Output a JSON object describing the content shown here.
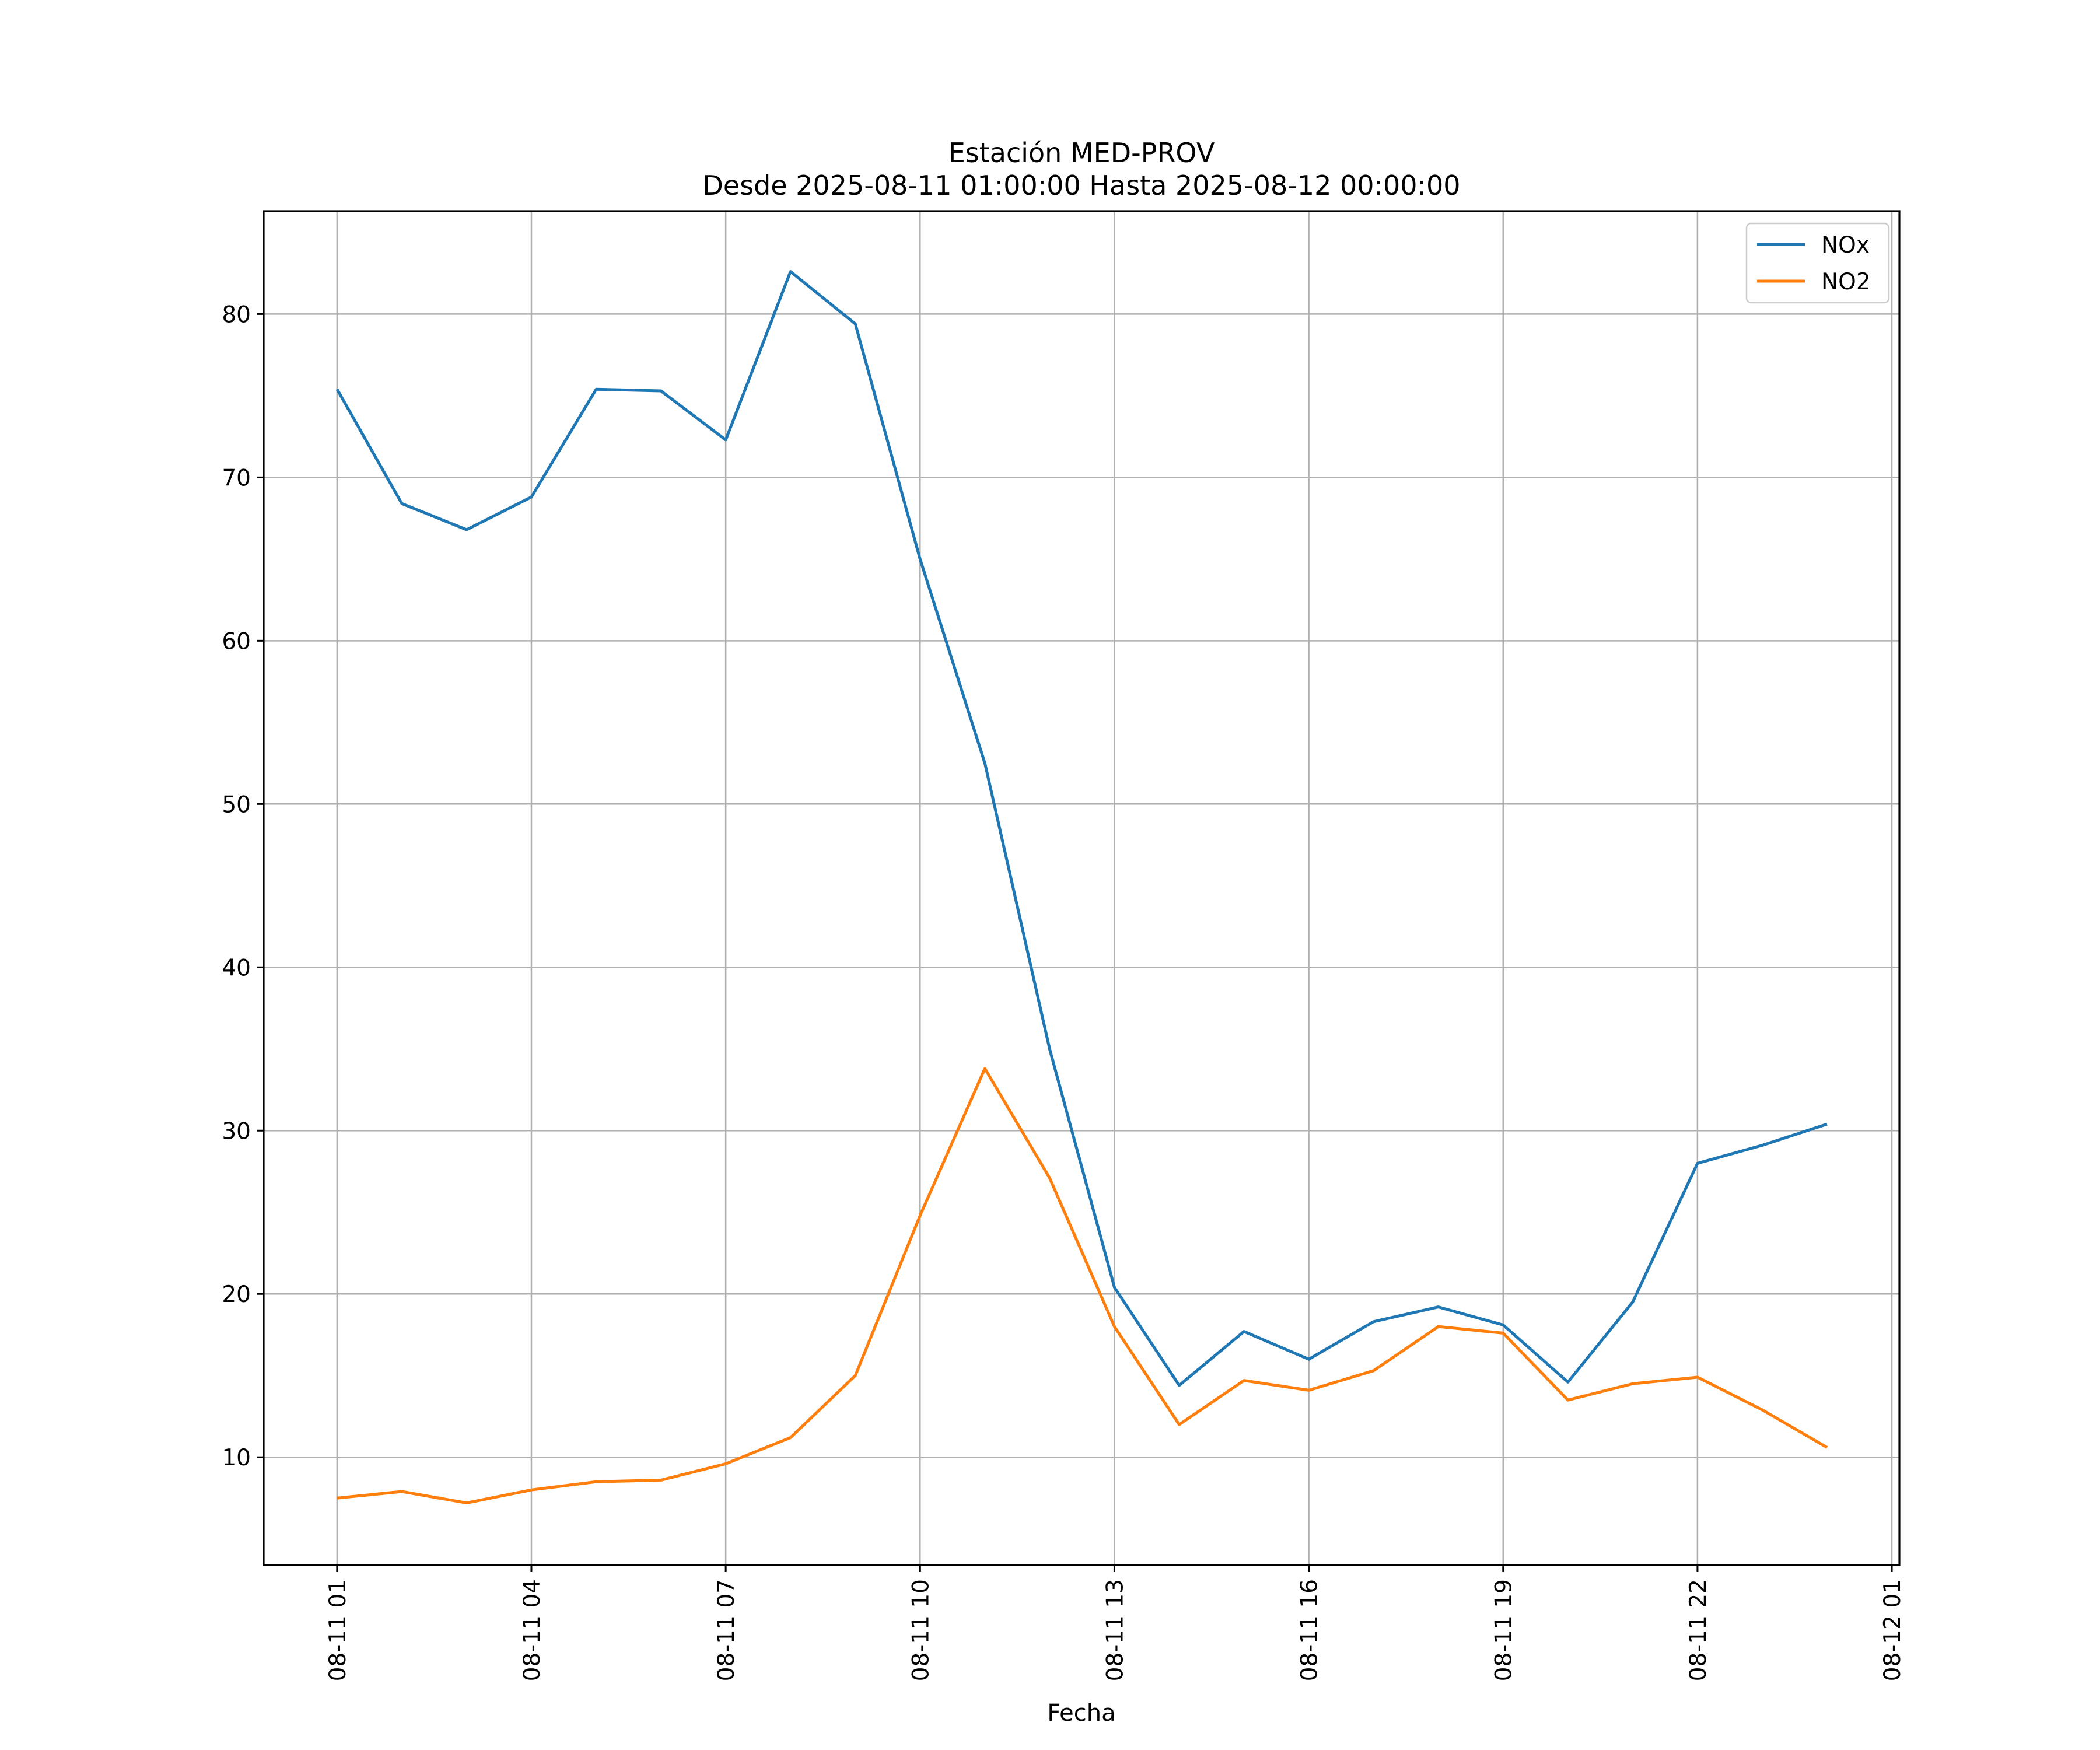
{
  "chart_data": {
    "type": "line",
    "title": "Estación MED-PROV",
    "subtitle": "Desde 2025-08-11 01:00:00 Hasta 2025-08-12 00:00:00",
    "xlabel": "Fecha",
    "ylabel": "",
    "x": [
      "08-11 01",
      "08-11 02",
      "08-11 03",
      "08-11 04",
      "08-11 05",
      "08-11 06",
      "08-11 07",
      "08-11 08",
      "08-11 09",
      "08-11 10",
      "08-11 11",
      "08-11 12",
      "08-11 13",
      "08-11 14",
      "08-11 15",
      "08-11 16",
      "08-11 17",
      "08-11 18",
      "08-11 19",
      "08-11 20",
      "08-11 21",
      "08-11 22",
      "08-11 23",
      "08-12 00"
    ],
    "x_ticks": [
      "08-11 01",
      "08-11 04",
      "08-11 07",
      "08-11 10",
      "08-11 13",
      "08-11 16",
      "08-11 19",
      "08-11 22",
      "08-12 01"
    ],
    "xlim": [
      "08-10 23:52",
      "08-12 01:07"
    ],
    "y_ticks": [
      10,
      20,
      30,
      40,
      50,
      60,
      70,
      80
    ],
    "ylim": [
      3.4,
      86.3
    ],
    "grid": true,
    "legend": "top-right",
    "series": [
      {
        "name": "NOx",
        "color": "#1f77b4",
        "values": [
          75.4,
          68.4,
          66.8,
          68.8,
          75.4,
          75.3,
          72.3,
          82.6,
          79.4,
          65.0,
          52.5,
          35.0,
          20.4,
          14.4,
          17.7,
          16.0,
          18.3,
          19.2,
          18.1,
          14.6,
          19.5,
          28.0,
          29.1,
          30.4
        ]
      },
      {
        "name": "NO2",
        "color": "#ff7f0e",
        "values": [
          7.5,
          7.9,
          7.2,
          8.0,
          8.5,
          8.6,
          9.6,
          11.2,
          15.0,
          24.8,
          33.8,
          27.1,
          18.0,
          12.0,
          14.7,
          14.1,
          15.3,
          18.0,
          17.6,
          13.5,
          14.5,
          14.9,
          12.9,
          10.6
        ]
      }
    ]
  }
}
